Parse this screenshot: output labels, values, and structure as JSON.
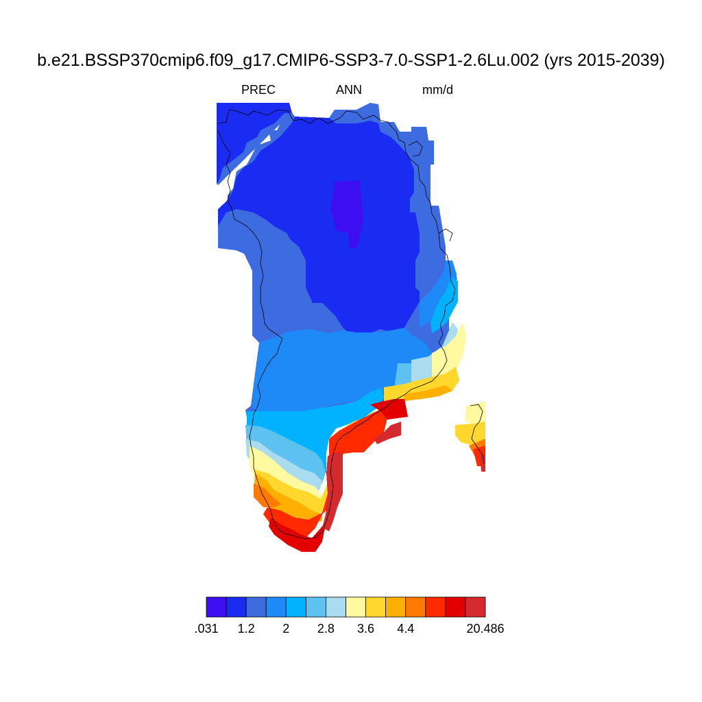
{
  "title": "b.e21.BSSP370cmip6.f09_g17.CMIP6-SSP3-7.0-SSP1-2.6Lu.002 (yrs 2015-2039)",
  "subtitle": {
    "left": "PREC",
    "center": "ANN",
    "right": "mm/d"
  },
  "colorbar": {
    "colors": [
      "#3e0ef3",
      "#1a2cf1",
      "#3d6ce0",
      "#1e8af7",
      "#00b2ff",
      "#5ec2f0",
      "#aadcf0",
      "#fffaa0",
      "#ffd72d",
      "#ffaf00",
      "#ff7a00",
      "#ff2a00",
      "#e30000",
      "#d42a2e"
    ],
    "tick_labels": [
      ".031",
      "1.2",
      "2",
      "2.8",
      "3.6",
      "4.4",
      "20.486"
    ],
    "tick_boundaries": [
      0,
      2,
      4,
      6,
      8,
      10,
      14
    ]
  },
  "map_data": {
    "type": "gridded-field",
    "region": "Greenland",
    "variable": "PREC",
    "units": "mm/d",
    "pattern": "low precipitation over the northern and central ice sheet (~0.6-1.2 mm/d), rising toward the southeast coast (>4.4 mm/d)"
  }
}
